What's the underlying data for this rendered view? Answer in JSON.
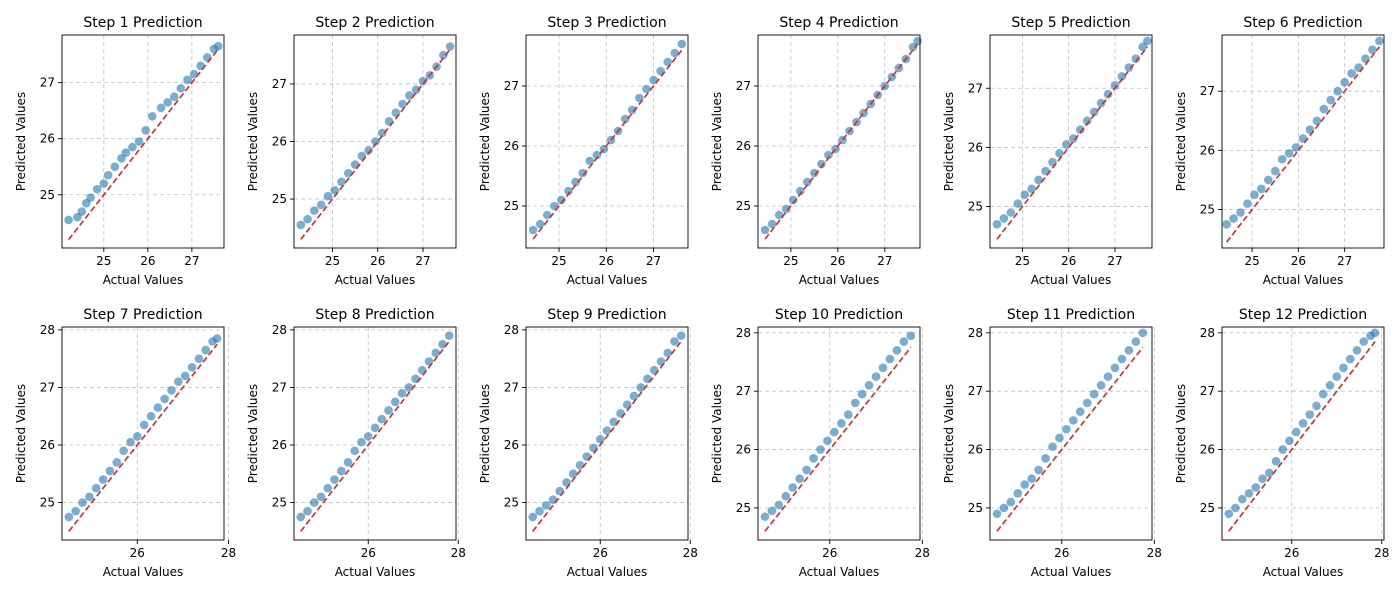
{
  "colors": {
    "points": "#1f77b4",
    "identity_line": "#d62728",
    "grid": "#b0b0b0",
    "axes": "#000000"
  },
  "chart_data": [
    {
      "type": "scatter",
      "title": "Step 1 Prediction",
      "xlabel": "Actual Values",
      "ylabel": "Predicted Values",
      "xlim": [
        24.05,
        27.73
      ],
      "ylim": [
        24.05,
        27.85
      ],
      "xticks": [
        25,
        26,
        27
      ],
      "yticks": [
        25,
        26,
        27
      ],
      "grid": true,
      "reference_line": "y = x",
      "x": [
        24.2,
        24.4,
        24.5,
        24.6,
        24.7,
        24.85,
        25.0,
        25.1,
        25.25,
        25.4,
        25.5,
        25.65,
        25.8,
        25.95,
        26.1,
        26.3,
        26.45,
        26.6,
        26.75,
        26.9,
        27.05,
        27.2,
        27.35,
        27.5,
        27.6
      ],
      "y": [
        24.55,
        24.6,
        24.7,
        24.85,
        24.95,
        25.1,
        25.2,
        25.35,
        25.5,
        25.65,
        25.75,
        25.85,
        25.95,
        26.15,
        26.4,
        26.55,
        26.65,
        26.75,
        26.9,
        27.05,
        27.15,
        27.3,
        27.45,
        27.6,
        27.65
      ]
    },
    {
      "type": "scatter",
      "title": "Step 2 Prediction",
      "xlabel": "Actual Values",
      "ylabel": "Predicted Values",
      "xlim": [
        24.15,
        27.73
      ],
      "ylim": [
        24.15,
        27.85
      ],
      "xticks": [
        25,
        26,
        27
      ],
      "yticks": [
        25,
        26,
        27
      ],
      "grid": true,
      "reference_line": "y = x",
      "x": [
        24.3,
        24.45,
        24.6,
        24.75,
        24.9,
        25.05,
        25.2,
        25.35,
        25.5,
        25.65,
        25.8,
        25.95,
        26.1,
        26.25,
        26.4,
        26.55,
        26.7,
        26.85,
        27.0,
        27.15,
        27.3,
        27.45,
        27.6
      ],
      "y": [
        24.55,
        24.65,
        24.8,
        24.9,
        25.05,
        25.15,
        25.3,
        25.45,
        25.6,
        25.75,
        25.85,
        26.0,
        26.15,
        26.35,
        26.5,
        26.65,
        26.8,
        26.9,
        27.05,
        27.15,
        27.3,
        27.5,
        27.65
      ]
    },
    {
      "type": "scatter",
      "title": "Step 3 Prediction",
      "xlabel": "Actual Values",
      "ylabel": "Predicted Values",
      "xlim": [
        24.3,
        27.73
      ],
      "ylim": [
        24.3,
        27.85
      ],
      "xticks": [
        25,
        26,
        27
      ],
      "yticks": [
        25,
        26,
        27
      ],
      "grid": true,
      "reference_line": "y = x",
      "x": [
        24.45,
        24.6,
        24.75,
        24.9,
        25.05,
        25.2,
        25.35,
        25.5,
        25.65,
        25.8,
        25.95,
        26.1,
        26.25,
        26.4,
        26.55,
        26.7,
        26.85,
        27.0,
        27.15,
        27.3,
        27.45,
        27.6
      ],
      "y": [
        24.6,
        24.7,
        24.85,
        25.0,
        25.1,
        25.25,
        25.4,
        25.55,
        25.75,
        25.85,
        25.95,
        26.1,
        26.25,
        26.45,
        26.6,
        26.8,
        26.95,
        27.1,
        27.25,
        27.4,
        27.55,
        27.7
      ]
    },
    {
      "type": "scatter",
      "title": "Step 4 Prediction",
      "xlabel": "Actual Values",
      "ylabel": "Predicted Values",
      "xlim": [
        24.3,
        27.75
      ],
      "ylim": [
        24.3,
        27.85
      ],
      "xticks": [
        25,
        26,
        27
      ],
      "yticks": [
        25,
        26,
        27
      ],
      "grid": true,
      "reference_line": "y = x",
      "x": [
        24.45,
        24.6,
        24.75,
        24.9,
        25.05,
        25.2,
        25.35,
        25.5,
        25.65,
        25.8,
        25.95,
        26.1,
        26.25,
        26.4,
        26.55,
        26.7,
        26.85,
        27.0,
        27.15,
        27.3,
        27.45,
        27.6,
        27.7
      ],
      "y": [
        24.6,
        24.7,
        24.85,
        24.95,
        25.1,
        25.25,
        25.4,
        25.55,
        25.7,
        25.85,
        25.95,
        26.1,
        26.25,
        26.4,
        26.55,
        26.7,
        26.85,
        27.0,
        27.15,
        27.3,
        27.45,
        27.65,
        27.75
      ]
    },
    {
      "type": "scatter",
      "title": "Step 5 Prediction",
      "xlabel": "Actual Values",
      "ylabel": "Predicted Values",
      "xlim": [
        24.3,
        27.8
      ],
      "ylim": [
        24.3,
        27.9
      ],
      "xticks": [
        25,
        26,
        27
      ],
      "yticks": [
        25,
        26,
        27
      ],
      "grid": true,
      "reference_line": "y = x",
      "x": [
        24.45,
        24.6,
        24.75,
        24.9,
        25.05,
        25.2,
        25.35,
        25.5,
        25.65,
        25.8,
        25.95,
        26.1,
        26.25,
        26.4,
        26.55,
        26.7,
        26.85,
        27.0,
        27.15,
        27.3,
        27.45,
        27.6,
        27.7
      ],
      "y": [
        24.7,
        24.8,
        24.9,
        25.05,
        25.2,
        25.3,
        25.45,
        25.6,
        25.75,
        25.9,
        26.05,
        26.15,
        26.3,
        26.45,
        26.6,
        26.75,
        26.9,
        27.05,
        27.2,
        27.35,
        27.5,
        27.7,
        27.8
      ]
    },
    {
      "type": "scatter",
      "title": "Step 6 Prediction",
      "xlabel": "Actual Values",
      "ylabel": "Predicted Values",
      "xlim": [
        24.35,
        27.85
      ],
      "ylim": [
        24.35,
        27.95
      ],
      "xticks": [
        25,
        26,
        27
      ],
      "yticks": [
        25,
        26,
        27
      ],
      "grid": true,
      "reference_line": "y = x",
      "x": [
        24.45,
        24.6,
        24.75,
        24.9,
        25.05,
        25.2,
        25.35,
        25.5,
        25.65,
        25.8,
        25.95,
        26.1,
        26.25,
        26.4,
        26.55,
        26.7,
        26.85,
        27.0,
        27.15,
        27.3,
        27.45,
        27.6,
        27.75
      ],
      "y": [
        24.75,
        24.85,
        24.95,
        25.1,
        25.25,
        25.35,
        25.5,
        25.65,
        25.85,
        25.95,
        26.05,
        26.2,
        26.35,
        26.5,
        26.7,
        26.85,
        27.0,
        27.15,
        27.3,
        27.4,
        27.55,
        27.7,
        27.85
      ]
    },
    {
      "type": "scatter",
      "title": "Step 7 Prediction",
      "xlabel": "Actual Values",
      "ylabel": "Predicted Values",
      "xlim": [
        24.35,
        27.9
      ],
      "ylim": [
        24.35,
        28.05
      ],
      "xticks": [
        26,
        28
      ],
      "yticks": [
        25,
        26,
        27,
        28
      ],
      "grid": true,
      "reference_line": "y = x",
      "x": [
        24.5,
        24.65,
        24.8,
        24.95,
        25.1,
        25.25,
        25.4,
        25.55,
        25.7,
        25.85,
        26.0,
        26.15,
        26.3,
        26.45,
        26.6,
        26.75,
        26.9,
        27.05,
        27.2,
        27.35,
        27.5,
        27.65,
        27.75
      ],
      "y": [
        24.75,
        24.85,
        25.0,
        25.1,
        25.25,
        25.4,
        25.55,
        25.7,
        25.9,
        26.05,
        26.15,
        26.35,
        26.5,
        26.65,
        26.8,
        26.95,
        27.1,
        27.2,
        27.35,
        27.5,
        27.65,
        27.8,
        27.85
      ]
    },
    {
      "type": "scatter",
      "title": "Step 8 Prediction",
      "xlabel": "Actual Values",
      "ylabel": "Predicted Values",
      "xlim": [
        24.35,
        27.95
      ],
      "ylim": [
        24.35,
        28.05
      ],
      "xticks": [
        26,
        28
      ],
      "yticks": [
        25,
        26,
        27,
        28
      ],
      "grid": true,
      "reference_line": "y = x",
      "x": [
        24.5,
        24.65,
        24.8,
        24.95,
        25.1,
        25.25,
        25.4,
        25.55,
        25.7,
        25.85,
        26.0,
        26.15,
        26.3,
        26.45,
        26.6,
        26.75,
        26.9,
        27.05,
        27.2,
        27.35,
        27.5,
        27.65,
        27.8
      ],
      "y": [
        24.75,
        24.85,
        25.0,
        25.1,
        25.25,
        25.4,
        25.55,
        25.7,
        25.9,
        26.05,
        26.15,
        26.3,
        26.45,
        26.6,
        26.75,
        26.9,
        27.0,
        27.15,
        27.3,
        27.45,
        27.6,
        27.75,
        27.9
      ]
    },
    {
      "type": "scatter",
      "title": "Step 9 Prediction",
      "xlabel": "Actual Values",
      "ylabel": "Predicted Values",
      "xlim": [
        24.35,
        27.95
      ],
      "ylim": [
        24.35,
        28.05
      ],
      "xticks": [
        26,
        28
      ],
      "yticks": [
        25,
        26,
        27,
        28
      ],
      "grid": true,
      "reference_line": "y = x",
      "x": [
        24.5,
        24.65,
        24.8,
        24.95,
        25.1,
        25.25,
        25.4,
        25.55,
        25.7,
        25.85,
        26.0,
        26.15,
        26.3,
        26.45,
        26.6,
        26.75,
        26.9,
        27.05,
        27.2,
        27.35,
        27.5,
        27.65,
        27.8
      ],
      "y": [
        24.75,
        24.85,
        24.95,
        25.05,
        25.2,
        25.35,
        25.5,
        25.65,
        25.8,
        25.95,
        26.1,
        26.25,
        26.4,
        26.55,
        26.7,
        26.85,
        27.0,
        27.15,
        27.3,
        27.45,
        27.6,
        27.8,
        27.9
      ]
    },
    {
      "type": "scatter",
      "title": "Step 10 Prediction",
      "xlabel": "Actual Values",
      "ylabel": "Predicted Values",
      "xlim": [
        24.45,
        27.95
      ],
      "ylim": [
        24.45,
        28.1
      ],
      "xticks": [
        26,
        28
      ],
      "yticks": [
        25,
        26,
        27,
        28
      ],
      "grid": true,
      "reference_line": "y = x",
      "x": [
        24.6,
        24.75,
        24.9,
        25.05,
        25.2,
        25.35,
        25.5,
        25.65,
        25.8,
        25.95,
        26.1,
        26.25,
        26.4,
        26.55,
        26.7,
        26.85,
        27.0,
        27.15,
        27.3,
        27.45,
        27.6,
        27.75
      ],
      "y": [
        24.85,
        24.95,
        25.05,
        25.2,
        25.35,
        25.5,
        25.65,
        25.85,
        26.0,
        26.15,
        26.3,
        26.45,
        26.6,
        26.8,
        26.95,
        27.1,
        27.25,
        27.4,
        27.55,
        27.7,
        27.85,
        27.95
      ]
    },
    {
      "type": "scatter",
      "title": "Step 11 Prediction",
      "xlabel": "Actual Values",
      "ylabel": "Predicted Values",
      "xlim": [
        24.45,
        27.95
      ],
      "ylim": [
        24.45,
        28.1
      ],
      "xticks": [
        26,
        28
      ],
      "yticks": [
        25,
        26,
        27,
        28
      ],
      "grid": true,
      "reference_line": "y = x",
      "x": [
        24.6,
        24.75,
        24.9,
        25.05,
        25.2,
        25.35,
        25.5,
        25.65,
        25.8,
        25.95,
        26.1,
        26.25,
        26.4,
        26.55,
        26.7,
        26.85,
        27.0,
        27.15,
        27.3,
        27.45,
        27.6,
        27.75
      ],
      "y": [
        24.9,
        25.0,
        25.1,
        25.25,
        25.4,
        25.5,
        25.65,
        25.85,
        26.05,
        26.2,
        26.35,
        26.5,
        26.65,
        26.8,
        26.95,
        27.1,
        27.25,
        27.4,
        27.55,
        27.7,
        27.85,
        28.0
      ]
    },
    {
      "type": "scatter",
      "title": "Step 12 Prediction",
      "xlabel": "Actual Values",
      "ylabel": "Predicted Values",
      "xlim": [
        24.45,
        28.05
      ],
      "ylim": [
        24.45,
        28.1
      ],
      "xticks": [
        26,
        28
      ],
      "yticks": [
        25,
        26,
        27,
        28
      ],
      "grid": true,
      "reference_line": "y = x",
      "x": [
        24.6,
        24.75,
        24.9,
        25.05,
        25.2,
        25.35,
        25.5,
        25.65,
        25.8,
        25.95,
        26.1,
        26.25,
        26.4,
        26.55,
        26.7,
        26.85,
        27.0,
        27.15,
        27.3,
        27.45,
        27.6,
        27.75,
        27.85
      ],
      "y": [
        24.9,
        25.0,
        25.15,
        25.25,
        25.35,
        25.5,
        25.6,
        25.8,
        26.0,
        26.15,
        26.3,
        26.45,
        26.6,
        26.75,
        26.95,
        27.1,
        27.25,
        27.4,
        27.55,
        27.7,
        27.85,
        27.95,
        28.0
      ]
    }
  ]
}
